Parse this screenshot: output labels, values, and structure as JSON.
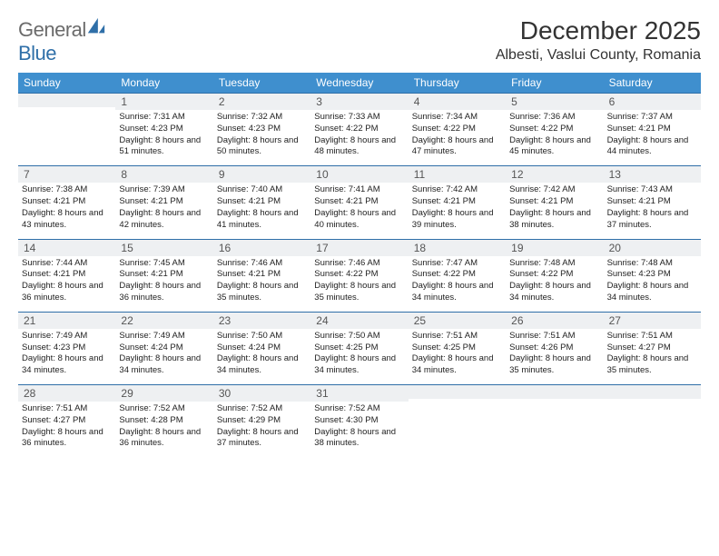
{
  "logo": {
    "gray_text": "General",
    "blue_text": "Blue"
  },
  "title": {
    "month": "December 2025",
    "location": "Albesti, Vaslui County, Romania"
  },
  "calendar": {
    "day_names": [
      "Sunday",
      "Monday",
      "Tuesday",
      "Wednesday",
      "Thursday",
      "Friday",
      "Saturday"
    ],
    "header_bg": "#3f8fce",
    "header_text_color": "#ffffff",
    "row_border_color": "#2f6fa8",
    "daynum_bg": "#eef0f2",
    "first_weekday_index": 1,
    "days": [
      {
        "n": 1,
        "sunrise": "7:31 AM",
        "sunset": "4:23 PM",
        "daylight": "8 hours and 51 minutes."
      },
      {
        "n": 2,
        "sunrise": "7:32 AM",
        "sunset": "4:23 PM",
        "daylight": "8 hours and 50 minutes."
      },
      {
        "n": 3,
        "sunrise": "7:33 AM",
        "sunset": "4:22 PM",
        "daylight": "8 hours and 48 minutes."
      },
      {
        "n": 4,
        "sunrise": "7:34 AM",
        "sunset": "4:22 PM",
        "daylight": "8 hours and 47 minutes."
      },
      {
        "n": 5,
        "sunrise": "7:36 AM",
        "sunset": "4:22 PM",
        "daylight": "8 hours and 45 minutes."
      },
      {
        "n": 6,
        "sunrise": "7:37 AM",
        "sunset": "4:21 PM",
        "daylight": "8 hours and 44 minutes."
      },
      {
        "n": 7,
        "sunrise": "7:38 AM",
        "sunset": "4:21 PM",
        "daylight": "8 hours and 43 minutes."
      },
      {
        "n": 8,
        "sunrise": "7:39 AM",
        "sunset": "4:21 PM",
        "daylight": "8 hours and 42 minutes."
      },
      {
        "n": 9,
        "sunrise": "7:40 AM",
        "sunset": "4:21 PM",
        "daylight": "8 hours and 41 minutes."
      },
      {
        "n": 10,
        "sunrise": "7:41 AM",
        "sunset": "4:21 PM",
        "daylight": "8 hours and 40 minutes."
      },
      {
        "n": 11,
        "sunrise": "7:42 AM",
        "sunset": "4:21 PM",
        "daylight": "8 hours and 39 minutes."
      },
      {
        "n": 12,
        "sunrise": "7:42 AM",
        "sunset": "4:21 PM",
        "daylight": "8 hours and 38 minutes."
      },
      {
        "n": 13,
        "sunrise": "7:43 AM",
        "sunset": "4:21 PM",
        "daylight": "8 hours and 37 minutes."
      },
      {
        "n": 14,
        "sunrise": "7:44 AM",
        "sunset": "4:21 PM",
        "daylight": "8 hours and 36 minutes."
      },
      {
        "n": 15,
        "sunrise": "7:45 AM",
        "sunset": "4:21 PM",
        "daylight": "8 hours and 36 minutes."
      },
      {
        "n": 16,
        "sunrise": "7:46 AM",
        "sunset": "4:21 PM",
        "daylight": "8 hours and 35 minutes."
      },
      {
        "n": 17,
        "sunrise": "7:46 AM",
        "sunset": "4:22 PM",
        "daylight": "8 hours and 35 minutes."
      },
      {
        "n": 18,
        "sunrise": "7:47 AM",
        "sunset": "4:22 PM",
        "daylight": "8 hours and 34 minutes."
      },
      {
        "n": 19,
        "sunrise": "7:48 AM",
        "sunset": "4:22 PM",
        "daylight": "8 hours and 34 minutes."
      },
      {
        "n": 20,
        "sunrise": "7:48 AM",
        "sunset": "4:23 PM",
        "daylight": "8 hours and 34 minutes."
      },
      {
        "n": 21,
        "sunrise": "7:49 AM",
        "sunset": "4:23 PM",
        "daylight": "8 hours and 34 minutes."
      },
      {
        "n": 22,
        "sunrise": "7:49 AM",
        "sunset": "4:24 PM",
        "daylight": "8 hours and 34 minutes."
      },
      {
        "n": 23,
        "sunrise": "7:50 AM",
        "sunset": "4:24 PM",
        "daylight": "8 hours and 34 minutes."
      },
      {
        "n": 24,
        "sunrise": "7:50 AM",
        "sunset": "4:25 PM",
        "daylight": "8 hours and 34 minutes."
      },
      {
        "n": 25,
        "sunrise": "7:51 AM",
        "sunset": "4:25 PM",
        "daylight": "8 hours and 34 minutes."
      },
      {
        "n": 26,
        "sunrise": "7:51 AM",
        "sunset": "4:26 PM",
        "daylight": "8 hours and 35 minutes."
      },
      {
        "n": 27,
        "sunrise": "7:51 AM",
        "sunset": "4:27 PM",
        "daylight": "8 hours and 35 minutes."
      },
      {
        "n": 28,
        "sunrise": "7:51 AM",
        "sunset": "4:27 PM",
        "daylight": "8 hours and 36 minutes."
      },
      {
        "n": 29,
        "sunrise": "7:52 AM",
        "sunset": "4:28 PM",
        "daylight": "8 hours and 36 minutes."
      },
      {
        "n": 30,
        "sunrise": "7:52 AM",
        "sunset": "4:29 PM",
        "daylight": "8 hours and 37 minutes."
      },
      {
        "n": 31,
        "sunrise": "7:52 AM",
        "sunset": "4:30 PM",
        "daylight": "8 hours and 38 minutes."
      }
    ],
    "labels": {
      "sunrise": "Sunrise:",
      "sunset": "Sunset:",
      "daylight": "Daylight:"
    }
  }
}
